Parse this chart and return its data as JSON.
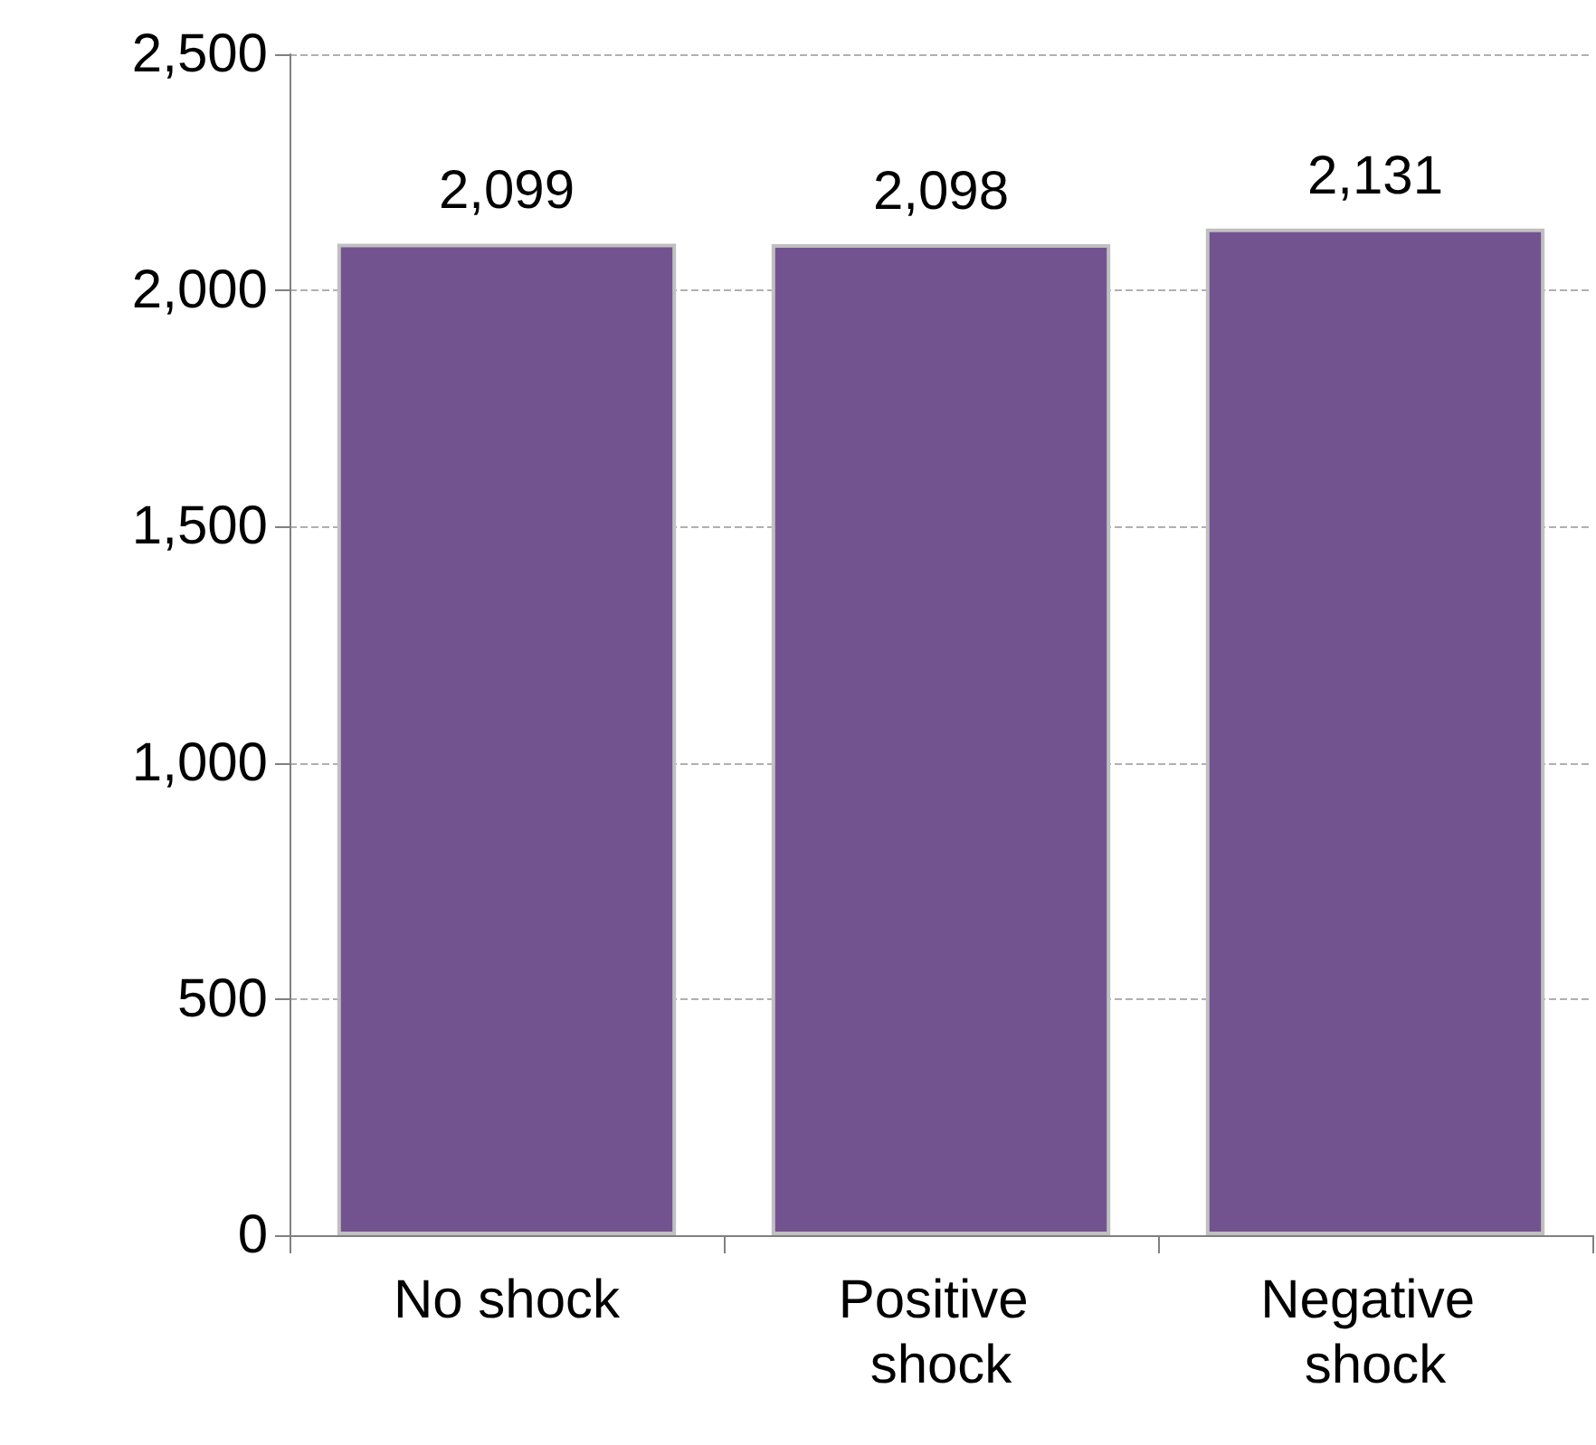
{
  "chart_data": {
    "type": "bar",
    "categories": [
      "No shock",
      "Positive shock",
      "Negative shock"
    ],
    "values": [
      2099,
      2098,
      2131
    ],
    "color": "#72538f",
    "value_labels": [
      "2,099",
      "2,098",
      "2,131"
    ],
    "ylim": [
      0,
      2500
    ],
    "yticks": [
      0,
      500,
      {
        "value": 1000,
        "label": "1,000"
      },
      {
        "value": 1500,
        "label": "1,500"
      },
      {
        "value": 2000,
        "label": "2,000"
      },
      {
        "value": 2500,
        "label": "2,500"
      }
    ],
    "grid": "y"
  }
}
